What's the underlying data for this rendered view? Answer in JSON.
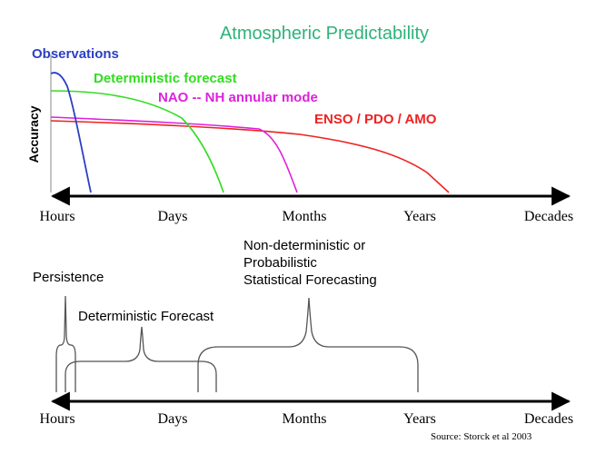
{
  "title": "Atmospheric Predictability",
  "colors": {
    "title": "#2db37a",
    "observations": "#2b3fc4",
    "deterministic": "#33dd22",
    "nao": "#dd22dd",
    "enso": "#ee2222",
    "axis": "#000000",
    "brace": "#555555"
  },
  "top_chart": {
    "ylabel": "Accuracy",
    "x_ticks": [
      "Hours",
      "Days",
      "Months",
      "Years",
      "Decades"
    ],
    "series": [
      {
        "id": "observations",
        "label": "Observations"
      },
      {
        "id": "deterministic",
        "label": "Deterministic forecast"
      },
      {
        "id": "nao",
        "label": "NAO -- NH annular mode"
      },
      {
        "id": "enso",
        "label": "ENSO / PDO  / AMO"
      }
    ]
  },
  "bottom_chart": {
    "x_ticks": [
      "Hours",
      "Days",
      "Months",
      "Years",
      "Decades"
    ],
    "labels": {
      "persistence": "Persistence",
      "deterministic": "Deterministic Forecast",
      "nondet_line1": "Non-deterministic or",
      "nondet_line2": "Probabilistic",
      "nondet_line3": "Statistical Forecasting"
    }
  },
  "source": "Source: Storck et al 2003"
}
